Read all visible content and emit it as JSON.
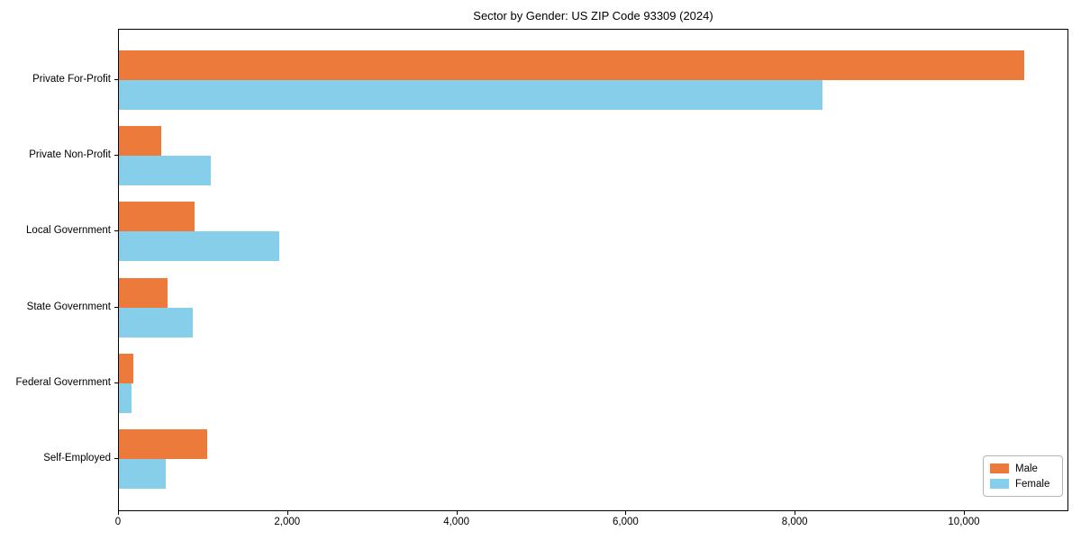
{
  "title": "Sector by Gender: US ZIP Code 93309 (2024)",
  "chart_data": {
    "type": "bar",
    "orientation": "horizontal",
    "title": "Sector by Gender: US ZIP Code 93309 (2024)",
    "categories": [
      "Private For-Profit",
      "Private Non-Profit",
      "Local Government",
      "State Government",
      "Federal Government",
      "Self-Employed"
    ],
    "series": [
      {
        "name": "Male",
        "color": "#EC7A3B",
        "values": [
          10700,
          505,
          895,
          570,
          165,
          1045
        ]
      },
      {
        "name": "Female",
        "color": "#87CEEB",
        "values": [
          8320,
          1090,
          1900,
          875,
          150,
          550
        ]
      }
    ],
    "xlabel": "",
    "ylabel": "",
    "xlim": [
      0,
      11235
    ],
    "xticks": [
      0,
      2000,
      4000,
      6000,
      8000,
      10000
    ],
    "xtick_labels": [
      "0",
      "2,000",
      "4,000",
      "6,000",
      "8,000",
      "10,000"
    ],
    "legend": {
      "position": "lower right",
      "entries": [
        "Male",
        "Female"
      ]
    },
    "grid": false,
    "background_color": "#ffffff",
    "axis_color": "#000000"
  }
}
